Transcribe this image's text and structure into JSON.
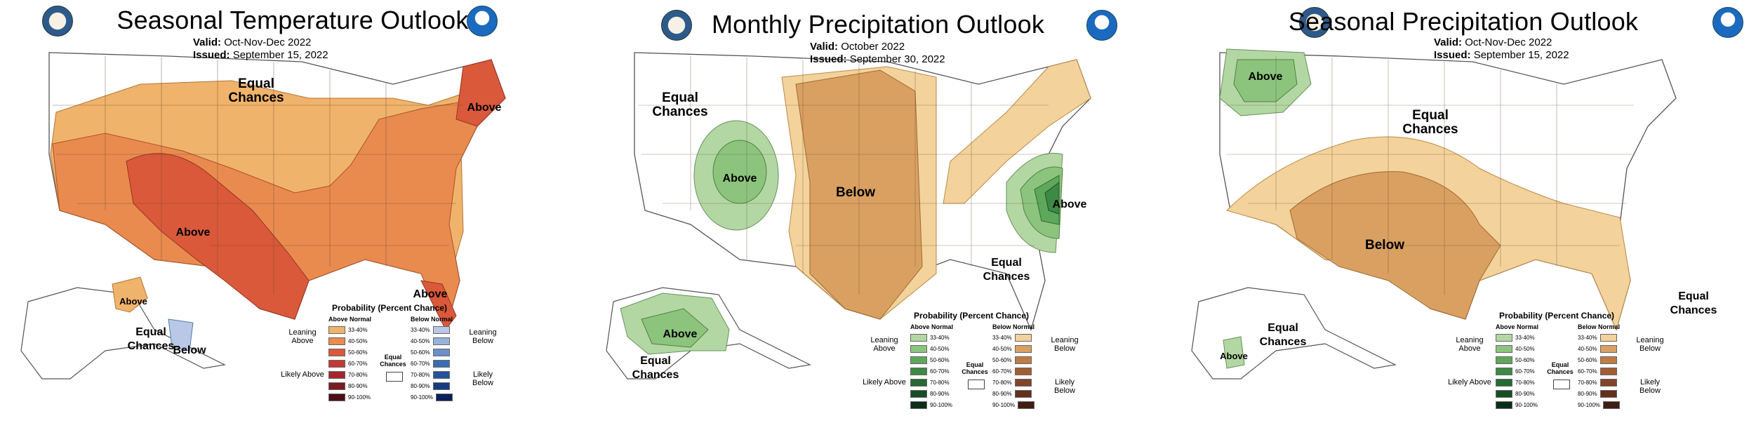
{
  "panels": [
    {
      "title": "Seasonal Temperature Outlook",
      "valid_label": "Valid:",
      "valid_value": "Oct-Nov-Dec 2022",
      "issued_label": "Issued:",
      "issued_value": "September 15, 2022",
      "map_labels": [
        "Equal Chances",
        "Above",
        "Above",
        "Above",
        "Above",
        "Equal Chances",
        "Below"
      ],
      "legend": {
        "title": "Probability (Percent Chance)",
        "col_left": "Above Normal",
        "col_right": "Below Normal",
        "leaning_left": "Leaning Above",
        "likely_left": "Likely Above",
        "leaning_right": "Leaning Below",
        "likely_right": "Likely Below",
        "equal": "Equal Chances",
        "left_colors": [
          "#f0b36b",
          "#e98b4f",
          "#d9593a",
          "#c33a34",
          "#a4262c",
          "#7a1c22",
          "#4b0f14"
        ],
        "right_colors": [
          "#b8c8e6",
          "#98b2dc",
          "#6b8fca",
          "#3a6db4",
          "#24539c",
          "#163b80",
          "#0b1f5c"
        ]
      }
    },
    {
      "title": "Monthly Precipitation Outlook",
      "valid_label": "Valid:",
      "valid_value": "October 2022",
      "issued_label": "Issued:",
      "issued_value": "September 30, 2022",
      "map_labels": [
        "Equal Chances",
        "Above",
        "Below",
        "Above",
        "Equal Chances",
        "Above",
        "Equal Chances"
      ],
      "legend": {
        "title": "Probability (Percent Chance)",
        "col_left": "Above Normal",
        "col_right": "Below Normal",
        "leaning_left": "Leaning Above",
        "likely_left": "Likely Above",
        "leaning_right": "Leaning Below",
        "likely_right": "Likely Below",
        "equal": "Equal Chances",
        "left_colors": [
          "#b3d7a3",
          "#8cc47d",
          "#5ea85b",
          "#3c8a44",
          "#256b33",
          "#174d25",
          "#0b2f16"
        ],
        "right_colors": [
          "#f3d29b",
          "#d9a062",
          "#c07c44",
          "#a25d33",
          "#834427",
          "#62301d",
          "#3f1d12"
        ]
      }
    },
    {
      "title": "Seasonal Precipitation Outlook",
      "valid_label": "Valid:",
      "valid_value": "Oct-Nov-Dec 2022",
      "issued_label": "Issued:",
      "issued_value": "September 15, 2022",
      "map_labels": [
        "Above",
        "Equal Chances",
        "Below",
        "Equal Chances",
        "Equal Chances",
        "Above"
      ],
      "legend": {
        "title": "Probability (Percent Chance)",
        "col_left": "Above Normal",
        "col_right": "Below Normal",
        "leaning_left": "Leaning Above",
        "likely_left": "Likely Above",
        "leaning_right": "Leaning Below",
        "likely_right": "Likely Below",
        "equal": "Equal Chances",
        "left_colors": [
          "#b3d7a3",
          "#8cc47d",
          "#5ea85b",
          "#3c8a44",
          "#256b33",
          "#174d25",
          "#0b2f16"
        ],
        "right_colors": [
          "#f3d29b",
          "#d9a062",
          "#c07c44",
          "#a25d33",
          "#834427",
          "#62301d",
          "#3f1d12"
        ]
      }
    }
  ],
  "legend_ranges": [
    "33-40%",
    "40-50%",
    "50-60%",
    "60-70%",
    "70-80%",
    "80-90%",
    "90-100%"
  ]
}
